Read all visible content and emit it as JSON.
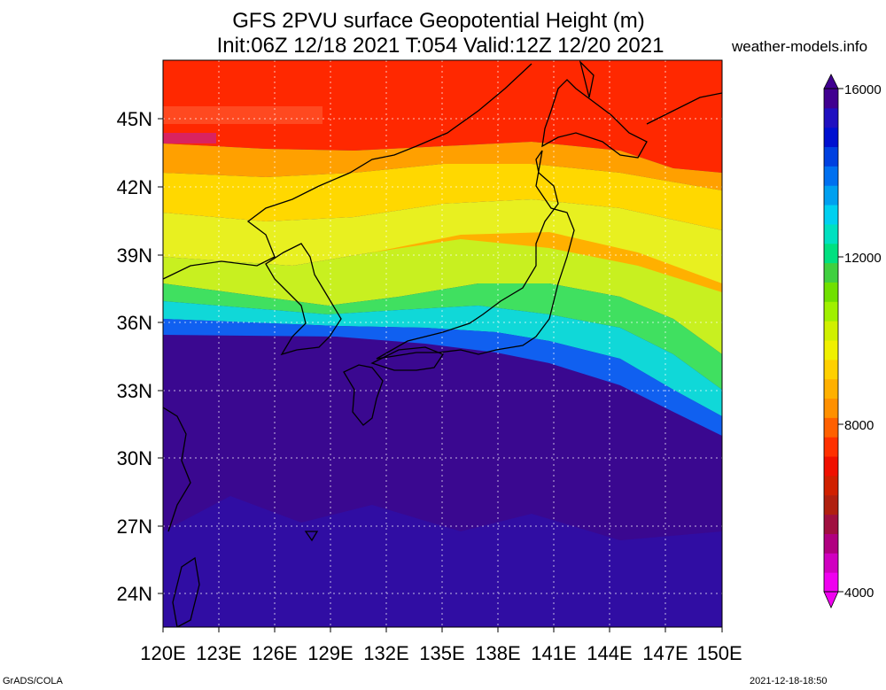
{
  "header": {
    "title_line1": "GFS 2PVU surface Geopotential Height (m)",
    "title_line2": "Init:06Z 12/18 2021 T:054 Valid:12Z 12/20 2021",
    "site": "weather-models.info"
  },
  "footer": {
    "left": "GrADS/COLA",
    "right": "2021-12-18-18:50"
  },
  "map": {
    "x_ticks": [
      "120E",
      "123E",
      "126E",
      "129E",
      "132E",
      "135E",
      "138E",
      "141E",
      "144E",
      "147E",
      "150E"
    ],
    "y_ticks": [
      "45N",
      "42N",
      "39N",
      "36N",
      "33N",
      "30N",
      "27N",
      "24N"
    ],
    "lon_range": [
      120,
      150
    ],
    "lat_range": [
      22.5,
      47.5
    ]
  },
  "colorbar": {
    "labels": [
      "16000",
      "12000",
      "8000",
      "4000"
    ],
    "min": 4000,
    "max": 16000,
    "colors": [
      "#f000f0",
      "#d000c0",
      "#b00080",
      "#a01040",
      "#b02010",
      "#d02000",
      "#f01000",
      "#ff3000",
      "#ff6000",
      "#ff9000",
      "#ffb000",
      "#ffd000",
      "#f0f000",
      "#d0f000",
      "#a0f000",
      "#70e000",
      "#40d040",
      "#00e080",
      "#00e0c0",
      "#00d0f0",
      "#00a0f0",
      "#0070f0",
      "#0040e0",
      "#0010d0",
      "#2010c0",
      "#400090"
    ]
  }
}
